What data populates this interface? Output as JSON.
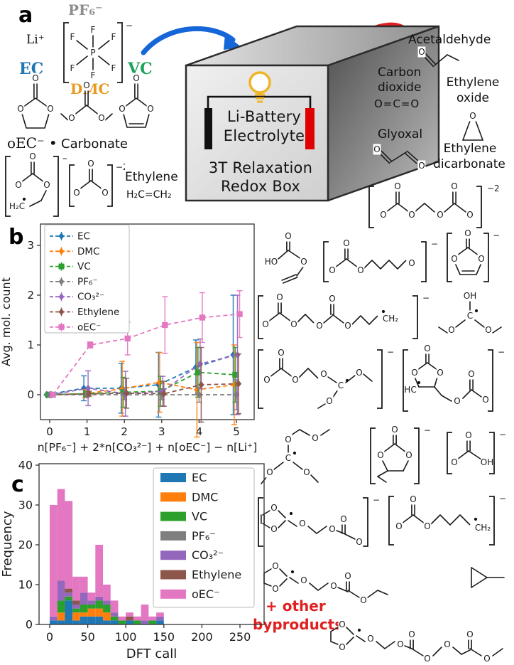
{
  "figure": {
    "a": "a",
    "b": "b",
    "c": "c"
  },
  "panel_a": {
    "pf6_label": "PF₆⁻",
    "li_label": "Li⁺",
    "ec_label": "EC",
    "dmc_label": "DMC",
    "vc_label": "VC",
    "oec_label": "oEC⁻ •",
    "carbonate_label": "Carbonate",
    "ethylene_label": "Ethylene",
    "ethylene_formula": "H₂C=CH₂",
    "colors": {
      "ec": "#1f77b4",
      "dmc": "#e89a20",
      "vc": "#1ca35a",
      "pf6": "#8e8e8e",
      "li": "#1a1a1a"
    },
    "box": {
      "line1": "Li-Battery",
      "line2": "Electrolyte",
      "line3": "3T Relaxation",
      "line4": "Redox Box"
    },
    "arrow_colors": {
      "in": "#1566d8",
      "out": "#e02020"
    },
    "electrode_colors": {
      "left": "#111111",
      "right": "#e00202"
    },
    "bulb_color": "#f0b429",
    "products": {
      "acetaldehyde": "Acetaldehyde",
      "carbon_dioxide_1": "Carbon",
      "carbon_dioxide_2": "dioxide",
      "co2_formula": "O=C=O",
      "ethylene_oxide_1": "Ethylene",
      "ethylene_oxide_2": "oxide",
      "glyoxal": "Glyoxal",
      "ethylene_dicarbonate_1": "Ethylene",
      "ethylene_dicarbonate_2": "dicarbonate"
    }
  },
  "chem": {
    "O": "O",
    "P": "P",
    "F": "F",
    "C": "C",
    "HO": "HO",
    "OH": "OH",
    "H2C": "H₂C",
    "CH2": "CH₂",
    "HC": "HC",
    "minus": "−",
    "minus2": "−2",
    "co2": "O=C=O"
  },
  "byproducts_note_1": "+ other",
  "byproducts_note_2": "byproducts",
  "note_color": "#e02020",
  "molecules_right": [
    "ethylene dicarbonate dianion",
    "vinyl hydrogen carbonate",
    "alkylene dicarbonate dianion",
    "vinylene carbonate anion",
    "carbonate oligomer radical anion (•CH2)",
    "dimethoxy(hydroxy)methyl radical",
    "methoxy-methyl carbonate radical anion",
    "cyclic carbonate radical anion with carbonate tail",
    "dimethoxymethyl radical with methoxymethyl ether",
    "ethyl cyclic carbonate anion",
    "hydrogen carbonate anion",
    "dioxolanyl radical ethylene carbonate anion",
    "butylene carbonate radical anion (•CH2)",
    "dioxolanyl methyl dicarbonate radical",
    "methyl cyclopropane",
    "dioxolanyl oligocarbonate radical"
  ],
  "chart_data": [
    {
      "type": "line",
      "panel": "b",
      "title": "",
      "xlabel": "n[PF₆⁻] + 2*n[CO₃²⁻] + n[oEC⁻] − n[Li⁺]",
      "ylabel": "Avg. mol. count",
      "x": [
        0,
        1,
        2,
        3,
        4,
        5
      ],
      "xticks": [
        0,
        1,
        2,
        3,
        4,
        5
      ],
      "yticks": [
        0,
        1,
        2,
        3
      ],
      "xlim": [
        -0.25,
        5.45
      ],
      "ylim": [
        -0.5,
        3.43
      ],
      "grid": false,
      "legend_position": "upper left",
      "line_style": "dashed",
      "series": [
        {
          "name": "EC",
          "color": "#1f77b4",
          "marker": "diamond",
          "values": [
            0,
            0.13,
            0.13,
            0.2,
            0.55,
            0.8
          ],
          "err": [
            0,
            0.25,
            0.5,
            0.65,
            0.55,
            1.2
          ]
        },
        {
          "name": "DMC",
          "color": "#ff7f0e",
          "marker": "diamond",
          "values": [
            0,
            0.02,
            0.12,
            0.25,
            0.1,
            0.2
          ],
          "err": [
            0,
            0.08,
            0.55,
            0.6,
            0.95,
            0.8
          ]
        },
        {
          "name": "VC",
          "color": "#2ca02c",
          "marker": "square",
          "values": [
            0,
            0.02,
            0.05,
            0.07,
            0.45,
            0.4
          ],
          "err": [
            0,
            0.05,
            0.3,
            0.3,
            0.5,
            0.55
          ]
        },
        {
          "name": "PF₆⁻",
          "color": "#7f7f7f",
          "marker": "diamond",
          "values": [
            0,
            0.0,
            0.0,
            0.0,
            0.0,
            0.0
          ],
          "err": [
            0,
            0.05,
            0.1,
            0.1,
            0.15,
            0.3
          ]
        },
        {
          "name": "CO₃²⁻",
          "color": "#9467bd",
          "marker": "diamond",
          "values": [
            0,
            0.13,
            0.02,
            0.07,
            0.62,
            0.8
          ],
          "err": [
            0,
            0.35,
            0.45,
            0.3,
            0.5,
            1.2
          ]
        },
        {
          "name": "Ethylene",
          "color": "#8c564b",
          "marker": "diamond",
          "values": [
            0,
            0.02,
            0.03,
            0.02,
            0.2,
            0.22
          ],
          "err": [
            0,
            0.05,
            0.3,
            0.25,
            0.75,
            0.6
          ]
        },
        {
          "name": "oEC⁻",
          "color": "#e377c2",
          "marker": "square",
          "values": [
            0,
            1.0,
            1.13,
            1.4,
            1.55,
            1.62
          ],
          "err": [
            0,
            0.06,
            0.33,
            0.57,
            0.5,
            0.47
          ]
        }
      ]
    },
    {
      "type": "bar",
      "panel": "c",
      "subtype": "stacked-histogram",
      "xlabel": "DFT call",
      "ylabel": "Frequency",
      "bin_start": 0,
      "bin_width": 10,
      "bin_count": 15,
      "xticks": [
        0,
        50,
        100,
        150,
        200,
        250
      ],
      "yticks": [
        0,
        10,
        20,
        30,
        40
      ],
      "xlim": [
        -14,
        281
      ],
      "ylim": [
        0,
        40
      ],
      "grid": false,
      "legend_position": "upper right",
      "series": [
        {
          "name": "EC",
          "color": "#1f77b4",
          "values": [
            1,
            1,
            6,
            1,
            2,
            2,
            2,
            1,
            1,
            0,
            1,
            0,
            0,
            0,
            1
          ]
        },
        {
          "name": "DMC",
          "color": "#ff7f0e",
          "values": [
            0,
            2,
            0,
            2,
            1,
            2,
            2,
            2,
            0,
            0,
            0,
            0,
            0,
            0,
            0
          ]
        },
        {
          "name": "VC",
          "color": "#2ca02c",
          "values": [
            0,
            3,
            1,
            1,
            2,
            1,
            2,
            2,
            1,
            1,
            0,
            1,
            0,
            1,
            0
          ]
        },
        {
          "name": "PF₆⁻",
          "color": "#7f7f7f",
          "values": [
            0,
            0,
            0,
            0,
            0,
            0,
            0,
            0,
            0,
            0,
            0,
            0,
            0,
            0,
            0
          ]
        },
        {
          "name": "CO₃²⁻",
          "color": "#9467bd",
          "values": [
            1,
            5,
            1,
            1,
            3,
            1,
            1,
            1,
            1,
            0,
            0,
            0,
            1,
            0,
            1
          ]
        },
        {
          "name": "Ethylene",
          "color": "#8c564b",
          "values": [
            0,
            0,
            1,
            1,
            0,
            0,
            0,
            0,
            0,
            0,
            1,
            0,
            0,
            0,
            0
          ]
        },
        {
          "name": "oEC⁻",
          "color": "#e377c2",
          "values": [
            28,
            23,
            22,
            6,
            4,
            2,
            13,
            4,
            3,
            1,
            1,
            1,
            4,
            1,
            1
          ]
        }
      ],
      "totals": [
        30,
        34,
        31,
        12,
        12,
        8,
        20,
        10,
        6,
        2,
        3,
        2,
        5,
        2,
        3
      ]
    }
  ]
}
